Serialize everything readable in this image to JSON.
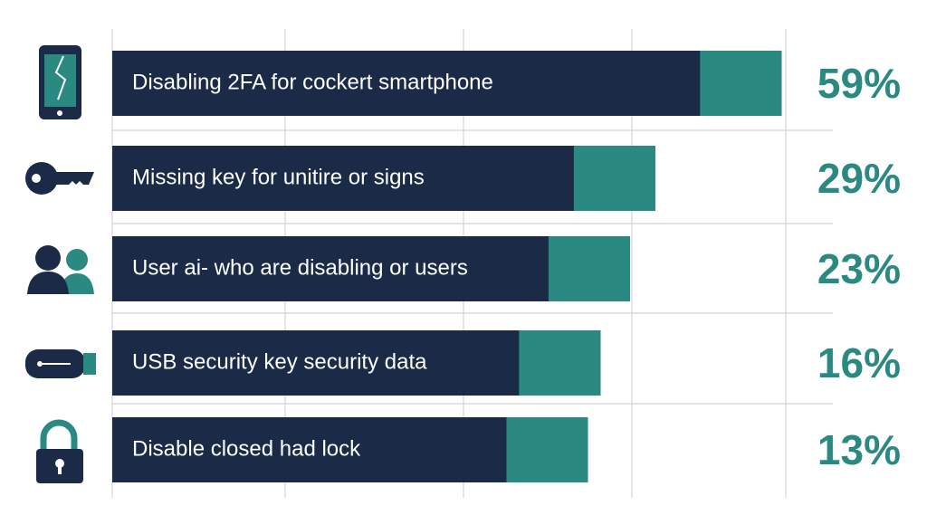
{
  "chart_data": {
    "type": "bar",
    "orientation": "horizontal",
    "categories": [
      "Disabling 2FA for cockert smartphone",
      "Missing key for unitire or signs",
      "User ai- who are disabling or users",
      "USB security key security data",
      "Disable closed had lock"
    ],
    "values": [
      59,
      29,
      23,
      16,
      13
    ],
    "value_labels": [
      "59%",
      "29%",
      "23%",
      "16%",
      "13%"
    ],
    "color": "#1b2a47",
    "accent_color": "#2a8a82",
    "xlim": [
      -100,
      60
    ]
  }
}
